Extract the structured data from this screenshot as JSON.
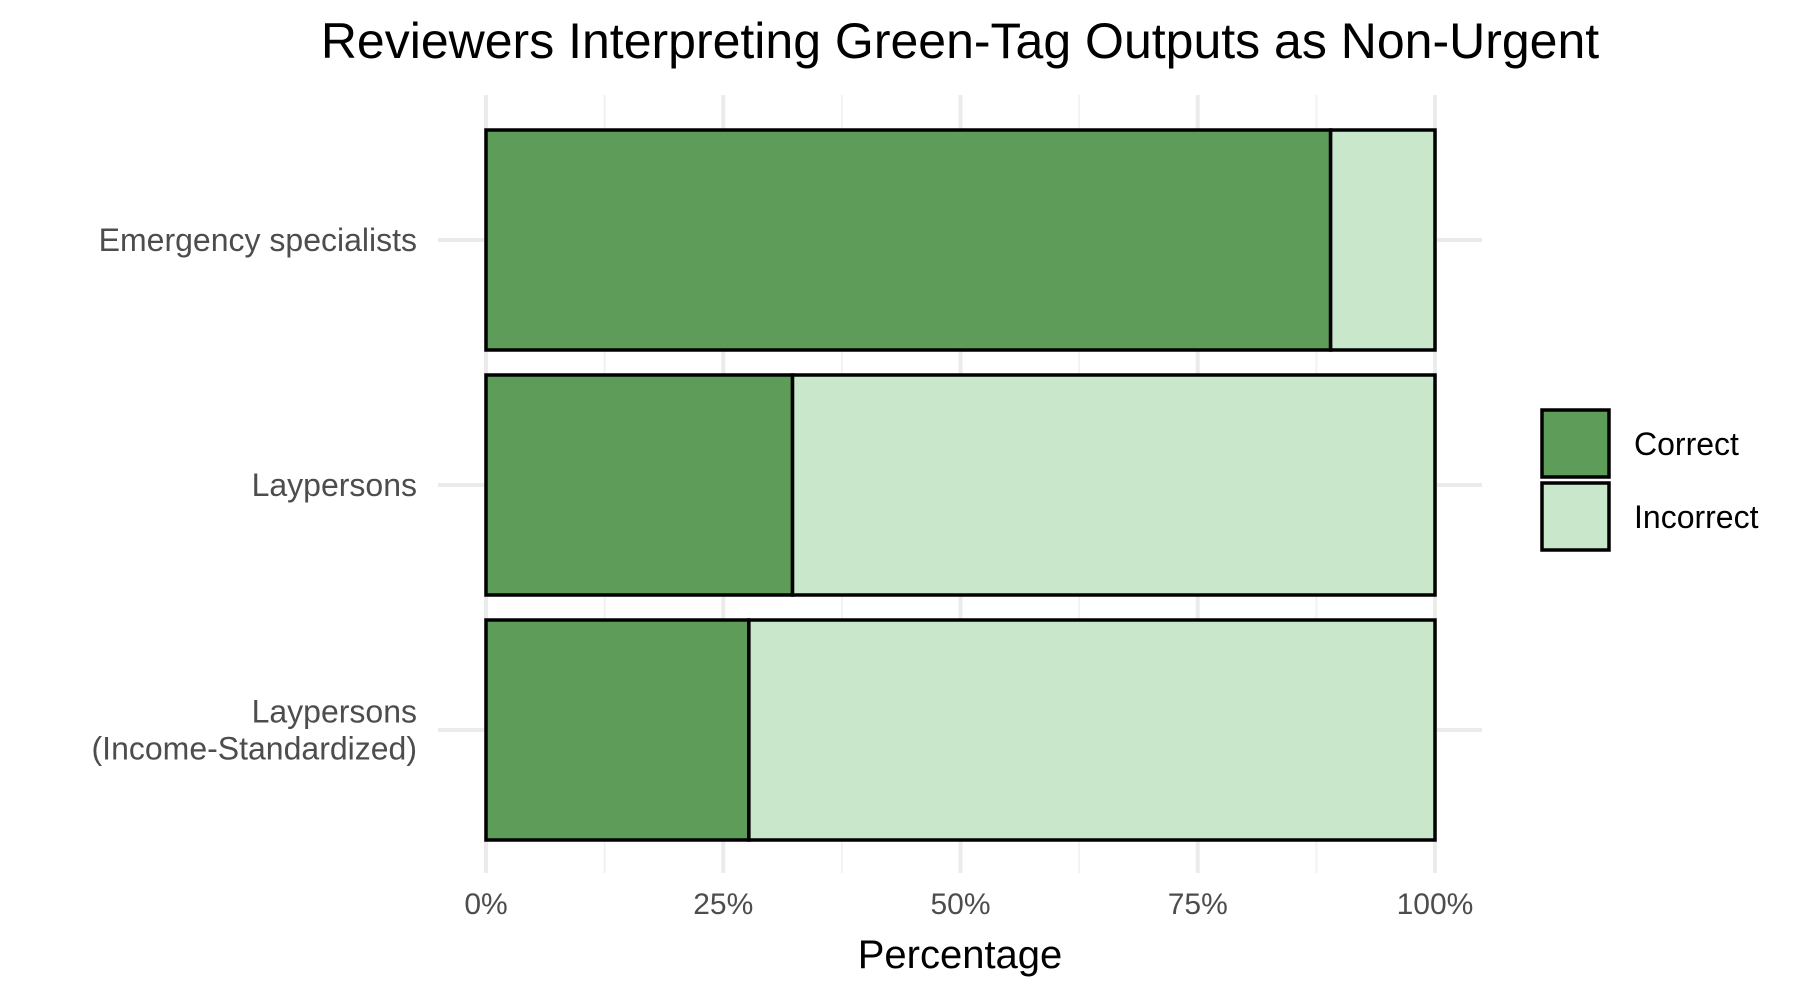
{
  "chart_data": {
    "type": "bar",
    "orientation": "horizontal",
    "stacked": true,
    "title": "Reviewers Interpreting Green-Tag Outputs as Non-Urgent",
    "xlabel": "Percentage",
    "ylabel": "",
    "xlim": [
      0,
      100
    ],
    "x_ticks": [
      "0%",
      "25%",
      "50%",
      "75%",
      "100%"
    ],
    "categories": [
      [
        "Emergency specialists"
      ],
      [
        "Laypersons"
      ],
      [
        "Laypersons",
        "(Income-Standardized)"
      ]
    ],
    "series": [
      {
        "name": "Correct",
        "color": "#5e9c5a",
        "values": [
          89,
          32.3,
          27.7
        ]
      },
      {
        "name": "Incorrect",
        "color": "#c9e7cb",
        "values": [
          11,
          67.7,
          72.3
        ]
      }
    ],
    "grid": true,
    "legend_position": "right"
  }
}
